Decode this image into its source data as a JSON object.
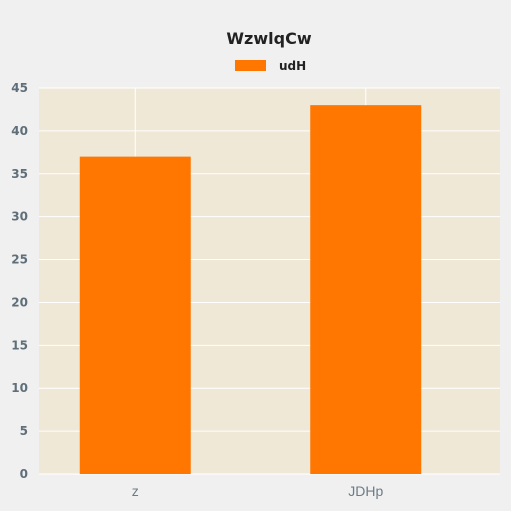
{
  "chart_data": {
    "type": "bar",
    "title": "WzwlqCw",
    "categories": [
      "z",
      "JDHp"
    ],
    "series": [
      {
        "name": "udH",
        "values": [
          37,
          43
        ],
        "color": "#ff7700"
      }
    ],
    "xlabel": "",
    "ylabel": "",
    "ylim": [
      0,
      45
    ],
    "yticks": [
      0,
      5,
      10,
      15,
      20,
      25,
      30,
      35,
      40,
      45
    ],
    "grid": true,
    "legend_position": "top-center",
    "plot_background": "#efe8d7",
    "page_background": "#f0f0f0"
  }
}
